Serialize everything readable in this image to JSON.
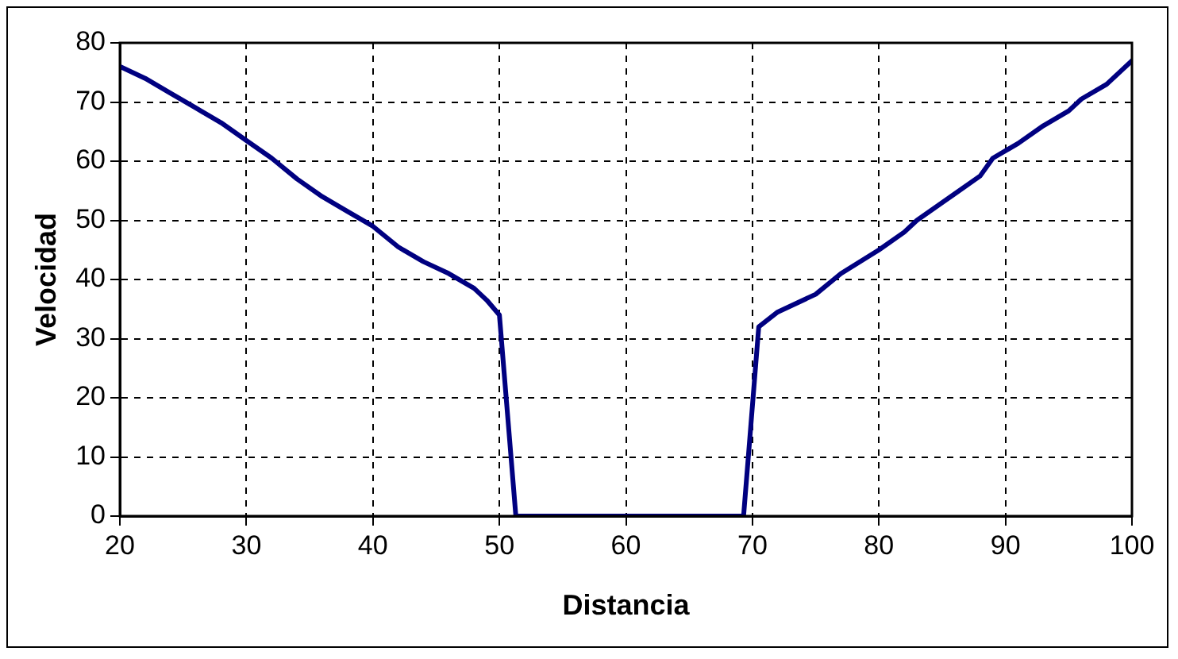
{
  "chart_data": {
    "type": "line",
    "xlabel": "Distancia",
    "ylabel": "Velocidad",
    "x": [
      20,
      22,
      24,
      26,
      28,
      30,
      32,
      34,
      36,
      38,
      40,
      42,
      44,
      46,
      48,
      49,
      50,
      51.3,
      60,
      69.3,
      70.5,
      72,
      75,
      77,
      80,
      82,
      83,
      86,
      88,
      89,
      91,
      93,
      95,
      96,
      98,
      100
    ],
    "series": [
      {
        "color": "#000080",
        "values": [
          76,
          74,
          71.5,
          69,
          66.5,
          63.5,
          60.5,
          57,
          54,
          51.5,
          49,
          45.5,
          43,
          41,
          38.5,
          36.5,
          34,
          0,
          0,
          0,
          32,
          34.5,
          37.5,
          41,
          45,
          48,
          50,
          54.5,
          57.5,
          60.5,
          63,
          66,
          68.5,
          70.5,
          73,
          77
        ]
      }
    ],
    "xlim": [
      20,
      100
    ],
    "xticks": [
      20,
      30,
      40,
      50,
      60,
      70,
      80,
      90,
      100
    ],
    "ylim": [
      0,
      80
    ],
    "yticks": [
      0,
      10,
      20,
      30,
      40,
      50,
      60,
      70,
      80
    ],
    "grid": true,
    "marker": "none",
    "line_style": "solid"
  }
}
